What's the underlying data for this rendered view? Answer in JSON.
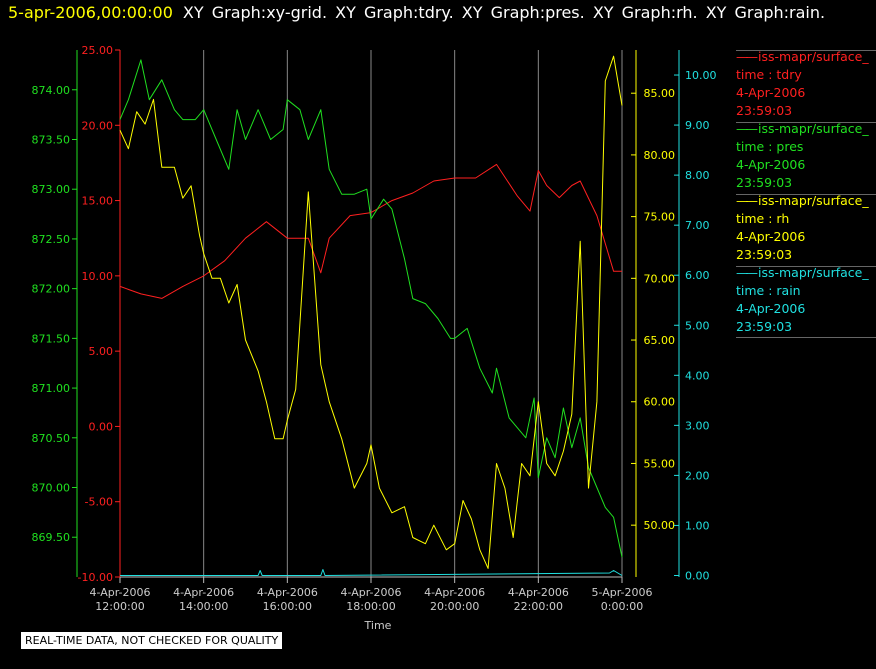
{
  "header": {
    "date": "5-apr-2006,00:00:00",
    "graphs": "XY Graph:xy-grid.  XY Graph:tdry.  XY Graph:pres.  XY Graph:rh.  XY Graph:rain."
  },
  "footer_note": "REAL-TIME DATA, NOT CHECKED FOR QUALITY",
  "legend": [
    {
      "name": "iss-mapr/surface_",
      "field": "time : tdry",
      "date": "4-Apr-2006",
      "time": "23:59:03",
      "color": "#ff2020"
    },
    {
      "name": "iss-mapr/surface_",
      "field": "time : pres",
      "date": "4-Apr-2006",
      "time": "23:59:03",
      "color": "#20e020"
    },
    {
      "name": "iss-mapr/surface_",
      "field": "time : rh",
      "date": "4-Apr-2006",
      "time": "23:59:03",
      "color": "#ffff00"
    },
    {
      "name": "iss-mapr/surface_",
      "field": "time : rain",
      "date": "4-Apr-2006",
      "time": "23:59:03",
      "color": "#20e0e0"
    }
  ],
  "chart_data": {
    "type": "line",
    "xlabel": "Time",
    "x_ticks": [
      [
        "4-Apr-2006",
        "12:00:00"
      ],
      [
        "4-Apr-2006",
        "14:00:00"
      ],
      [
        "4-Apr-2006",
        "16:00:00"
      ],
      [
        "4-Apr-2006",
        "18:00:00"
      ],
      [
        "4-Apr-2006",
        "20:00:00"
      ],
      [
        "4-Apr-2006",
        "22:00:00"
      ],
      [
        "5-Apr-2006",
        "0:00:00"
      ]
    ],
    "xlim_hours": [
      12,
      24
    ],
    "grid": "vertical",
    "axes": {
      "tdry": {
        "color": "#ff2020",
        "ylim": [
          -10,
          25
        ],
        "ticks": [
          "-10.00",
          "-5.00",
          "0.00",
          "5.00",
          "10.00",
          "15.00",
          "20.00",
          "25.00"
        ],
        "tick_values": [
          -10,
          -5,
          0,
          5,
          10,
          15,
          20,
          25
        ]
      },
      "pres": {
        "color": "#20e020",
        "ylim": [
          869.1,
          874.4
        ],
        "ticks": [
          "869.50",
          "870.00",
          "870.50",
          "871.00",
          "871.50",
          "872.00",
          "872.50",
          "873.00",
          "873.50",
          "874.00"
        ],
        "tick_values": [
          869.5,
          870,
          870.5,
          871,
          871.5,
          872,
          872.5,
          873,
          873.5,
          874
        ]
      },
      "rh": {
        "color": "#ffff00",
        "ylim": [
          45.8,
          88.5
        ],
        "ticks": [
          "50.00",
          "55.00",
          "60.00",
          "65.00",
          "70.00",
          "75.00",
          "80.00",
          "85.00"
        ],
        "tick_values": [
          50,
          55,
          60,
          65,
          70,
          75,
          80,
          85
        ]
      },
      "rain": {
        "color": "#20e0e0",
        "ylim": [
          -0.03,
          10.5
        ],
        "ticks": [
          "0.00",
          "1.00",
          "2.00",
          "3.00",
          "4.00",
          "5.00",
          "6.00",
          "7.00",
          "8.00",
          "9.00",
          "10.00"
        ],
        "tick_values": [
          0,
          1,
          2,
          3,
          4,
          5,
          6,
          7,
          8,
          9,
          10
        ]
      }
    },
    "series": [
      {
        "name": "tdry",
        "axis": "tdry",
        "color": "#ff2020",
        "x": [
          12,
          12.5,
          13,
          13.5,
          14,
          14.5,
          15,
          15.5,
          16,
          16.5,
          16.8,
          17,
          17.5,
          18,
          18.5,
          19,
          19.5,
          20,
          20.5,
          21,
          21.5,
          21.8,
          22,
          22.2,
          22.5,
          22.8,
          23,
          23.4,
          23.8,
          24
        ],
        "y": [
          9.3,
          8.8,
          8.5,
          9.3,
          10,
          11,
          12.5,
          13.6,
          12.5,
          12.5,
          10.2,
          12.5,
          14,
          14.2,
          15,
          15.5,
          16.3,
          16.5,
          16.5,
          17.4,
          15.3,
          14.3,
          17,
          16,
          15.2,
          16,
          16.3,
          14,
          10.3,
          10.3
        ]
      },
      {
        "name": "pres",
        "axis": "pres",
        "color": "#20e020",
        "x": [
          12,
          12.2,
          12.5,
          12.7,
          13,
          13.3,
          13.5,
          13.8,
          14,
          14.3,
          14.6,
          14.8,
          15,
          15.3,
          15.6,
          15.9,
          16,
          16.3,
          16.5,
          16.8,
          17,
          17.3,
          17.6,
          17.9,
          18,
          18.3,
          18.5,
          18.8,
          19,
          19.3,
          19.6,
          19.9,
          20,
          20.3,
          20.6,
          20.9,
          21,
          21.3,
          21.5,
          21.7,
          21.9,
          22,
          22.2,
          22.4,
          22.6,
          22.8,
          23,
          23.2,
          23.4,
          23.6,
          23.8,
          24
        ],
        "y": [
          873.7,
          873.9,
          874.3,
          873.9,
          874.1,
          873.8,
          873.7,
          873.7,
          873.8,
          873.5,
          873.2,
          873.8,
          873.5,
          873.8,
          873.5,
          873.6,
          873.9,
          873.8,
          873.5,
          873.8,
          873.2,
          872.95,
          872.95,
          873.0,
          872.7,
          872.9,
          872.8,
          872.3,
          871.9,
          871.85,
          871.7,
          871.5,
          871.5,
          871.6,
          871.2,
          870.95,
          871.2,
          870.7,
          870.6,
          870.5,
          870.9,
          870.1,
          870.5,
          870.3,
          870.8,
          870.4,
          870.7,
          870.2,
          870.0,
          869.8,
          869.7,
          869.3
        ]
      },
      {
        "name": "rh",
        "axis": "rh",
        "color": "#ffff00",
        "x": [
          12,
          12.2,
          12.4,
          12.6,
          12.8,
          13,
          13.3,
          13.5,
          13.7,
          13.9,
          14,
          14.2,
          14.4,
          14.6,
          14.8,
          15,
          15.3,
          15.5,
          15.7,
          15.9,
          16,
          16.2,
          16.5,
          16.8,
          17,
          17.3,
          17.6,
          17.9,
          18,
          18.2,
          18.5,
          18.8,
          19,
          19.3,
          19.5,
          19.8,
          20,
          20.2,
          20.4,
          20.6,
          20.8,
          21,
          21.2,
          21.4,
          21.6,
          21.8,
          22,
          22.2,
          22.4,
          22.6,
          22.8,
          23,
          23.2,
          23.4,
          23.6,
          23.8,
          24
        ],
        "y": [
          82,
          80.5,
          83.5,
          82.5,
          84.5,
          79,
          79,
          76.5,
          77.5,
          73.5,
          72,
          70,
          70,
          68,
          69.5,
          65,
          62.5,
          60,
          57,
          57,
          58.5,
          61,
          77,
          63,
          60,
          57,
          53,
          55,
          56.5,
          53,
          51,
          51.5,
          49,
          48.5,
          50,
          48,
          48.5,
          52,
          50.5,
          48,
          46.5,
          55,
          53,
          49,
          55,
          54,
          60,
          55,
          54,
          56,
          59,
          73,
          53,
          60,
          86,
          88,
          84
        ]
      },
      {
        "name": "rain",
        "axis": "rain",
        "color": "#20e0e0",
        "x": [
          12,
          15.3,
          15.35,
          15.4,
          16.8,
          16.85,
          16.9,
          23.7,
          23.8,
          23.9,
          24
        ],
        "y": [
          0,
          0,
          0.1,
          0,
          0,
          0.12,
          0,
          0.05,
          0.1,
          0.05,
          0
        ]
      }
    ]
  }
}
